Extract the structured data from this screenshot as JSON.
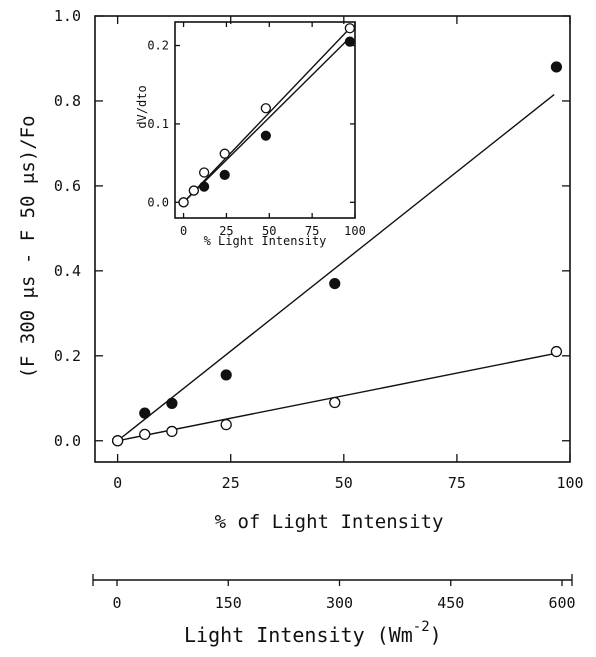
{
  "chart_data": [
    {
      "type": "scatter",
      "title": "",
      "xlabel": "% of Light Intensity",
      "ylabel": "(F 300 μs - F 50 μs)/Fo",
      "xlim": [
        -5,
        100
      ],
      "ylim": [
        -0.05,
        1.0
      ],
      "xticks": [
        0,
        25,
        50,
        75,
        100
      ],
      "yticks": [
        0.0,
        0.2,
        0.4,
        0.6,
        0.8,
        1.0
      ],
      "xtick_labels": [
        "0",
        "25",
        "50",
        "75",
        "100"
      ],
      "ytick_labels": [
        "0.0",
        "0.2",
        "0.4",
        "0.6",
        "0.8",
        "1.0"
      ],
      "series": [
        {
          "marker": "filled-circle",
          "x": [
            0,
            6,
            12,
            24,
            48,
            97
          ],
          "y": [
            0.0,
            0.065,
            0.088,
            0.155,
            0.37,
            0.88
          ],
          "fit": [
            [
              0,
              0.0
            ],
            [
              96.5,
              0.815
            ]
          ]
        },
        {
          "marker": "open-circle",
          "x": [
            0,
            6,
            12,
            24,
            48,
            97
          ],
          "y": [
            0.0,
            0.015,
            0.022,
            0.038,
            0.09,
            0.21
          ],
          "fit": [
            [
              0,
              0.0
            ],
            [
              96.5,
              0.205
            ]
          ]
        }
      ],
      "grid": false,
      "secondary_x_axis": {
        "label": "Light Intensity (Wm",
        "label_superscript": "-2",
        "label_suffix": ")",
        "ticks": [
          0,
          150,
          300,
          450,
          600
        ],
        "tick_labels": [
          "0",
          "150",
          "300",
          "450",
          "600"
        ],
        "range": [
          0,
          600
        ]
      }
    },
    {
      "type": "scatter",
      "title": "",
      "xlabel": "% Light Intensity",
      "ylabel": "dV/dto",
      "xlim": [
        -5,
        100
      ],
      "ylim": [
        -0.02,
        0.23
      ],
      "xticks": [
        0,
        25,
        50,
        75,
        100
      ],
      "yticks": [
        0.0,
        0.1,
        0.2
      ],
      "xtick_labels": [
        "0",
        "25",
        "50",
        "75",
        "100"
      ],
      "ytick_labels": [
        "0.0",
        "0.1",
        "0.2"
      ],
      "series": [
        {
          "marker": "filled-circle",
          "x": [
            0,
            6,
            12,
            24,
            48,
            97
          ],
          "y": [
            0.0,
            0.015,
            0.02,
            0.035,
            0.085,
            0.205
          ],
          "fit": [
            [
              0,
              0.0
            ],
            [
              97,
              0.21
            ]
          ]
        },
        {
          "marker": "open-circle",
          "x": [
            0,
            6,
            12,
            24,
            48,
            97
          ],
          "y": [
            0.0,
            0.015,
            0.038,
            0.062,
            0.12,
            0.222
          ],
          "fit": [
            [
              0,
              0.0
            ],
            [
              97,
              0.222
            ]
          ]
        }
      ],
      "grid": false
    }
  ]
}
